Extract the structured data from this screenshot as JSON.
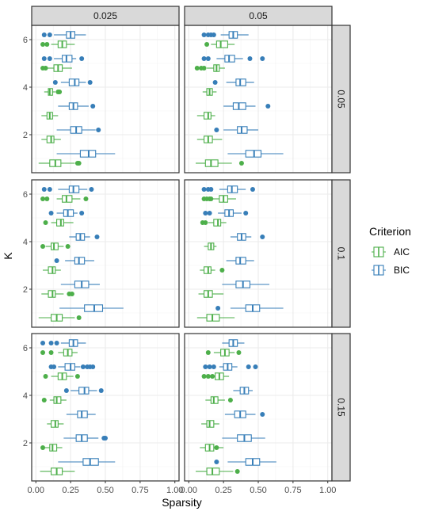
{
  "chart_data": {
    "type": "boxplot",
    "orientation": "horizontal",
    "xlabel": "Sparsity",
    "ylabel": "K",
    "xlim": [
      -0.03,
      1.03
    ],
    "ylim": [
      0.4,
      6.6
    ],
    "x_ticks": [
      0.0,
      0.25,
      0.5,
      0.75,
      1.0
    ],
    "x_tick_labels": [
      "0.00",
      "0.25",
      "0.50",
      "0.75",
      "1.00"
    ],
    "y_ticks": [
      2,
      4,
      6
    ],
    "y_tick_labels": [
      "2",
      "4",
      "6"
    ],
    "grid": true,
    "facet_cols": [
      "0.025",
      "0.05"
    ],
    "facet_rows": [
      "0.05",
      "0.1",
      "0.15"
    ],
    "legend": {
      "title": "Criterion",
      "placement": "right",
      "entries": [
        {
          "name": "AIC",
          "color": "#4daf4a"
        },
        {
          "name": "BIC",
          "color": "#377eb8"
        }
      ]
    },
    "series_colors": {
      "AIC": "#4daf4a",
      "BIC": "#377eb8"
    },
    "panels": [
      {
        "col": "0.025",
        "row": "0.05",
        "boxes": {
          "AIC": [
            {
              "k": 1,
              "wlo": 0.02,
              "q1": 0.1,
              "med": 0.14,
              "q3": 0.18,
              "whi": 0.28,
              "out": [
                0.3,
                0.31
              ]
            },
            {
              "k": 2,
              "wlo": 0.04,
              "q1": 0.08,
              "med": 0.11,
              "q3": 0.13,
              "whi": 0.18,
              "out": []
            },
            {
              "k": 3,
              "wlo": 0.04,
              "q1": 0.08,
              "med": 0.1,
              "q3": 0.12,
              "whi": 0.16,
              "out": []
            },
            {
              "k": 4,
              "wlo": 0.06,
              "q1": 0.09,
              "med": 0.1,
              "q3": 0.12,
              "whi": 0.14,
              "out": [
                0.16,
                0.17
              ]
            },
            {
              "k": 5,
              "wlo": 0.08,
              "q1": 0.13,
              "med": 0.16,
              "q3": 0.19,
              "whi": 0.26,
              "out": [
                0.05,
                0.07
              ]
            },
            {
              "k": 6,
              "wlo": 0.11,
              "q1": 0.16,
              "med": 0.19,
              "q3": 0.22,
              "whi": 0.28,
              "out": [
                0.05,
                0.08
              ]
            }
          ],
          "BIC": [
            {
              "k": 1,
              "wlo": 0.15,
              "q1": 0.32,
              "med": 0.38,
              "q3": 0.43,
              "whi": 0.57,
              "out": []
            },
            {
              "k": 2,
              "wlo": 0.15,
              "q1": 0.25,
              "med": 0.29,
              "q3": 0.33,
              "whi": 0.43,
              "out": [
                0.45
              ]
            },
            {
              "k": 3,
              "wlo": 0.16,
              "q1": 0.24,
              "med": 0.27,
              "q3": 0.3,
              "whi": 0.38,
              "out": [
                0.41
              ]
            },
            {
              "k": 4,
              "wlo": 0.18,
              "q1": 0.24,
              "med": 0.28,
              "q3": 0.31,
              "whi": 0.36,
              "out": [
                0.14,
                0.39
              ]
            },
            {
              "k": 5,
              "wlo": 0.13,
              "q1": 0.19,
              "med": 0.22,
              "q3": 0.26,
              "whi": 0.29,
              "out": [
                0.06,
                0.1,
                0.33
              ]
            },
            {
              "k": 6,
              "wlo": 0.13,
              "q1": 0.22,
              "med": 0.25,
              "q3": 0.28,
              "whi": 0.36,
              "out": [
                0.06,
                0.1
              ]
            }
          ]
        }
      },
      {
        "col": "0.05",
        "row": "0.05",
        "boxes": {
          "AIC": [
            {
              "k": 1,
              "wlo": 0.05,
              "q1": 0.12,
              "med": 0.16,
              "q3": 0.21,
              "whi": 0.31,
              "out": [
                0.38
              ]
            },
            {
              "k": 2,
              "wlo": 0.06,
              "q1": 0.11,
              "med": 0.14,
              "q3": 0.17,
              "whi": 0.24,
              "out": []
            },
            {
              "k": 3,
              "wlo": 0.06,
              "q1": 0.11,
              "med": 0.14,
              "q3": 0.16,
              "whi": 0.19,
              "out": []
            },
            {
              "k": 4,
              "wlo": 0.1,
              "q1": 0.13,
              "med": 0.15,
              "q3": 0.17,
              "whi": 0.2,
              "out": []
            },
            {
              "k": 5,
              "wlo": 0.13,
              "q1": 0.18,
              "med": 0.2,
              "q3": 0.22,
              "whi": 0.26,
              "out": [
                0.06,
                0.09,
                0.11
              ]
            },
            {
              "k": 6,
              "wlo": 0.16,
              "q1": 0.2,
              "med": 0.23,
              "q3": 0.28,
              "whi": 0.33,
              "out": [
                0.13
              ]
            }
          ],
          "BIC": [
            {
              "k": 1,
              "wlo": 0.28,
              "q1": 0.41,
              "med": 0.47,
              "q3": 0.52,
              "whi": 0.68,
              "out": []
            },
            {
              "k": 2,
              "wlo": 0.25,
              "q1": 0.35,
              "med": 0.38,
              "q3": 0.42,
              "whi": 0.5,
              "out": [
                0.2
              ]
            },
            {
              "k": 3,
              "wlo": 0.25,
              "q1": 0.32,
              "med": 0.36,
              "q3": 0.41,
              "whi": 0.48,
              "out": [
                0.57
              ]
            },
            {
              "k": 4,
              "wlo": 0.27,
              "q1": 0.34,
              "med": 0.37,
              "q3": 0.41,
              "whi": 0.47,
              "out": [
                0.19
              ]
            },
            {
              "k": 5,
              "wlo": 0.2,
              "q1": 0.26,
              "med": 0.29,
              "q3": 0.33,
              "whi": 0.39,
              "out": [
                0.11,
                0.14,
                0.44,
                0.53
              ]
            },
            {
              "k": 6,
              "wlo": 0.23,
              "q1": 0.29,
              "med": 0.32,
              "q3": 0.35,
              "whi": 0.43,
              "out": [
                0.11,
                0.14,
                0.16,
                0.18
              ]
            }
          ]
        }
      },
      {
        "col": "0.025",
        "row": "0.1",
        "boxes": {
          "AIC": [
            {
              "k": 1,
              "wlo": 0.02,
              "q1": 0.11,
              "med": 0.15,
              "q3": 0.19,
              "whi": 0.28,
              "out": [
                0.31
              ]
            },
            {
              "k": 2,
              "wlo": 0.04,
              "q1": 0.09,
              "med": 0.12,
              "q3": 0.14,
              "whi": 0.2,
              "out": [
                0.24,
                0.26
              ]
            },
            {
              "k": 3,
              "wlo": 0.05,
              "q1": 0.09,
              "med": 0.12,
              "q3": 0.14,
              "whi": 0.18,
              "out": []
            },
            {
              "k": 4,
              "wlo": 0.07,
              "q1": 0.11,
              "med": 0.13,
              "q3": 0.16,
              "whi": 0.2,
              "out": [
                0.05,
                0.23
              ]
            },
            {
              "k": 5,
              "wlo": 0.11,
              "q1": 0.15,
              "med": 0.18,
              "q3": 0.2,
              "whi": 0.27,
              "out": [
                0.07
              ]
            },
            {
              "k": 6,
              "wlo": 0.15,
              "q1": 0.19,
              "med": 0.22,
              "q3": 0.26,
              "whi": 0.32,
              "out": [
                0.05,
                0.08,
                0.36
              ]
            }
          ],
          "BIC": [
            {
              "k": 1,
              "wlo": 0.17,
              "q1": 0.35,
              "med": 0.42,
              "q3": 0.48,
              "whi": 0.63,
              "out": []
            },
            {
              "k": 2,
              "wlo": 0.18,
              "q1": 0.28,
              "med": 0.33,
              "q3": 0.38,
              "whi": 0.46,
              "out": []
            },
            {
              "k": 3,
              "wlo": 0.21,
              "q1": 0.28,
              "med": 0.31,
              "q3": 0.35,
              "whi": 0.42,
              "out": [
                0.15
              ]
            },
            {
              "k": 4,
              "wlo": 0.24,
              "q1": 0.29,
              "med": 0.32,
              "q3": 0.35,
              "whi": 0.39,
              "out": [
                0.44
              ]
            },
            {
              "k": 5,
              "wlo": 0.15,
              "q1": 0.2,
              "med": 0.23,
              "q3": 0.27,
              "whi": 0.3,
              "out": [
                0.11,
                0.33
              ]
            },
            {
              "k": 6,
              "wlo": 0.16,
              "q1": 0.24,
              "med": 0.27,
              "q3": 0.31,
              "whi": 0.37,
              "out": [
                0.06,
                0.1,
                0.4
              ]
            }
          ]
        }
      },
      {
        "col": "0.05",
        "row": "0.1",
        "boxes": {
          "AIC": [
            {
              "k": 1,
              "wlo": 0.06,
              "q1": 0.13,
              "med": 0.17,
              "q3": 0.22,
              "whi": 0.33,
              "out": []
            },
            {
              "k": 2,
              "wlo": 0.07,
              "q1": 0.11,
              "med": 0.14,
              "q3": 0.17,
              "whi": 0.25,
              "out": []
            },
            {
              "k": 3,
              "wlo": 0.08,
              "q1": 0.11,
              "med": 0.14,
              "q3": 0.16,
              "whi": 0.19,
              "out": [
                0.24
              ]
            },
            {
              "k": 4,
              "wlo": 0.11,
              "q1": 0.14,
              "med": 0.16,
              "q3": 0.18,
              "whi": 0.2,
              "out": []
            },
            {
              "k": 5,
              "wlo": 0.14,
              "q1": 0.18,
              "med": 0.21,
              "q3": 0.23,
              "whi": 0.27,
              "out": [
                0.1,
                0.12
              ]
            },
            {
              "k": 6,
              "wlo": 0.17,
              "q1": 0.22,
              "med": 0.25,
              "q3": 0.28,
              "whi": 0.34,
              "out": [
                0.11,
                0.13,
                0.15,
                0.16
              ]
            }
          ],
          "BIC": [
            {
              "k": 1,
              "wlo": 0.3,
              "q1": 0.41,
              "med": 0.46,
              "q3": 0.51,
              "whi": 0.68,
              "out": [
                0.21
              ]
            },
            {
              "k": 2,
              "wlo": 0.24,
              "q1": 0.34,
              "med": 0.39,
              "q3": 0.44,
              "whi": 0.58,
              "out": []
            },
            {
              "k": 3,
              "wlo": 0.27,
              "q1": 0.34,
              "med": 0.37,
              "q3": 0.41,
              "whi": 0.47,
              "out": []
            },
            {
              "k": 4,
              "wlo": 0.3,
              "q1": 0.35,
              "med": 0.38,
              "q3": 0.41,
              "whi": 0.45,
              "out": [
                0.53
              ]
            },
            {
              "k": 5,
              "wlo": 0.21,
              "q1": 0.26,
              "med": 0.29,
              "q3": 0.32,
              "whi": 0.38,
              "out": [
                0.12,
                0.15,
                0.41
              ]
            },
            {
              "k": 6,
              "wlo": 0.22,
              "q1": 0.28,
              "med": 0.31,
              "q3": 0.35,
              "whi": 0.41,
              "out": [
                0.11,
                0.14,
                0.16,
                0.46
              ]
            }
          ]
        }
      },
      {
        "col": "0.025",
        "row": "0.15",
        "boxes": {
          "AIC": [
            {
              "k": 1,
              "wlo": 0.03,
              "q1": 0.11,
              "med": 0.15,
              "q3": 0.19,
              "whi": 0.28,
              "out": []
            },
            {
              "k": 2,
              "wlo": 0.06,
              "q1": 0.1,
              "med": 0.12,
              "q3": 0.15,
              "whi": 0.19,
              "out": [
                0.05
              ]
            },
            {
              "k": 3,
              "wlo": 0.08,
              "q1": 0.11,
              "med": 0.14,
              "q3": 0.16,
              "whi": 0.2,
              "out": []
            },
            {
              "k": 4,
              "wlo": 0.1,
              "q1": 0.13,
              "med": 0.15,
              "q3": 0.18,
              "whi": 0.22,
              "out": [
                0.06
              ]
            },
            {
              "k": 5,
              "wlo": 0.11,
              "q1": 0.16,
              "med": 0.19,
              "q3": 0.22,
              "whi": 0.27,
              "out": [
                0.07,
                0.3
              ]
            },
            {
              "k": 6,
              "wlo": 0.16,
              "q1": 0.2,
              "med": 0.23,
              "q3": 0.26,
              "whi": 0.3,
              "out": [
                0.05,
                0.11
              ]
            }
          ],
          "BIC": [
            {
              "k": 1,
              "wlo": 0.16,
              "q1": 0.34,
              "med": 0.39,
              "q3": 0.45,
              "whi": 0.57,
              "out": []
            },
            {
              "k": 2,
              "wlo": 0.2,
              "q1": 0.29,
              "med": 0.33,
              "q3": 0.37,
              "whi": 0.45,
              "out": [
                0.49,
                0.5
              ]
            },
            {
              "k": 3,
              "wlo": 0.22,
              "q1": 0.3,
              "med": 0.33,
              "q3": 0.37,
              "whi": 0.43,
              "out": []
            },
            {
              "k": 4,
              "wlo": 0.25,
              "q1": 0.31,
              "med": 0.35,
              "q3": 0.38,
              "whi": 0.44,
              "out": [
                0.22,
                0.47
              ]
            },
            {
              "k": 5,
              "wlo": 0.16,
              "q1": 0.21,
              "med": 0.25,
              "q3": 0.28,
              "whi": 0.32,
              "out": [
                0.11,
                0.13,
                0.34,
                0.37,
                0.39,
                0.41
              ]
            },
            {
              "k": 6,
              "wlo": 0.18,
              "q1": 0.24,
              "med": 0.27,
              "q3": 0.3,
              "whi": 0.36,
              "out": [
                0.05,
                0.11,
                0.15
              ]
            }
          ]
        }
      },
      {
        "col": "0.05",
        "row": "0.15",
        "boxes": {
          "AIC": [
            {
              "k": 1,
              "wlo": 0.05,
              "q1": 0.13,
              "med": 0.17,
              "q3": 0.22,
              "whi": 0.32,
              "out": [
                0.35
              ]
            },
            {
              "k": 2,
              "wlo": 0.08,
              "q1": 0.12,
              "med": 0.15,
              "q3": 0.18,
              "whi": 0.25,
              "out": [
                0.2
              ]
            },
            {
              "k": 3,
              "wlo": 0.09,
              "q1": 0.13,
              "med": 0.15,
              "q3": 0.18,
              "whi": 0.22,
              "out": []
            },
            {
              "k": 4,
              "wlo": 0.12,
              "q1": 0.16,
              "med": 0.18,
              "q3": 0.21,
              "whi": 0.26,
              "out": [
                0.3
              ]
            },
            {
              "k": 5,
              "wlo": 0.15,
              "q1": 0.19,
              "med": 0.22,
              "q3": 0.25,
              "whi": 0.29,
              "out": [
                0.11,
                0.14,
                0.17
              ]
            },
            {
              "k": 6,
              "wlo": 0.18,
              "q1": 0.23,
              "med": 0.26,
              "q3": 0.29,
              "whi": 0.33,
              "out": [
                0.14,
                0.36
              ]
            }
          ],
          "BIC": [
            {
              "k": 1,
              "wlo": 0.28,
              "q1": 0.41,
              "med": 0.46,
              "q3": 0.51,
              "whi": 0.63,
              "out": [
                0.2
              ]
            },
            {
              "k": 2,
              "wlo": 0.24,
              "q1": 0.35,
              "med": 0.4,
              "q3": 0.45,
              "whi": 0.55,
              "out": []
            },
            {
              "k": 3,
              "wlo": 0.26,
              "q1": 0.33,
              "med": 0.37,
              "q3": 0.41,
              "whi": 0.48,
              "out": [
                0.53
              ]
            },
            {
              "k": 4,
              "wlo": 0.32,
              "q1": 0.37,
              "med": 0.4,
              "q3": 0.43,
              "whi": 0.46,
              "out": []
            },
            {
              "k": 5,
              "wlo": 0.22,
              "q1": 0.25,
              "med": 0.28,
              "q3": 0.31,
              "whi": 0.35,
              "out": [
                0.12,
                0.15,
                0.18,
                0.43,
                0.48
              ]
            },
            {
              "k": 6,
              "wlo": 0.24,
              "q1": 0.29,
              "med": 0.32,
              "q3": 0.35,
              "whi": 0.4,
              "out": []
            }
          ]
        }
      }
    ]
  }
}
